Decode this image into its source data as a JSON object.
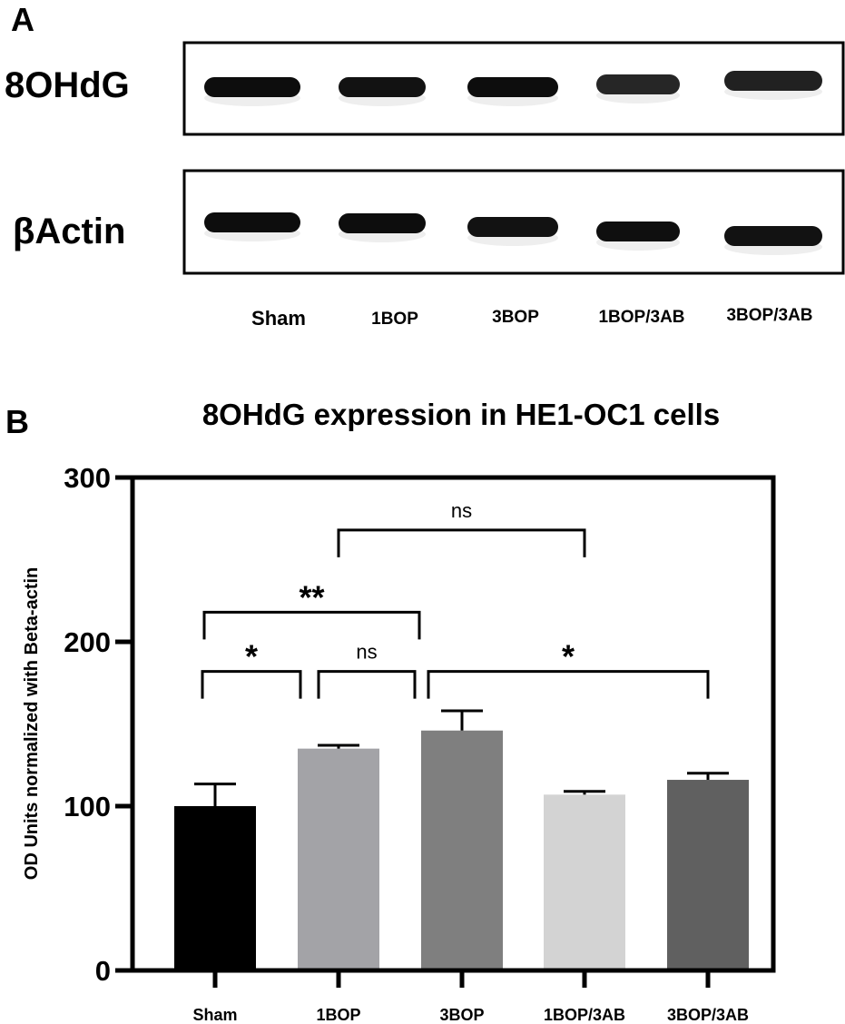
{
  "panel_a": {
    "letter": "A",
    "blots": [
      {
        "label": "8OHdG",
        "bands": [
          {
            "intensity": 0.95
          },
          {
            "intensity": 0.93
          },
          {
            "intensity": 0.95
          },
          {
            "intensity": 0.85
          },
          {
            "intensity": 0.87
          }
        ]
      },
      {
        "label": "βActin",
        "bands": [
          {
            "intensity": 0.95
          },
          {
            "intensity": 0.95
          },
          {
            "intensity": 0.93
          },
          {
            "intensity": 0.94
          },
          {
            "intensity": 0.93
          }
        ]
      }
    ],
    "lane_labels": [
      "Sham",
      "1BOP",
      "3BOP",
      "1BOP/3AB",
      "3BOP/3AB"
    ]
  },
  "panel_b": {
    "letter": "B"
  },
  "chart_data": {
    "type": "bar",
    "title": "8OHdG expression in HE1-OC1 cells",
    "xlabel": "",
    "ylabel": "OD Units normalized with Beta-actin",
    "categories": [
      "Sham",
      "1BOP",
      "3BOP",
      "1BOP/3AB",
      "3BOP/3AB"
    ],
    "values": [
      100,
      135,
      146,
      107,
      116
    ],
    "errors": [
      13.5,
      2,
      12,
      2,
      4
    ],
    "colors": [
      "#000000",
      "#a3a3a7",
      "#7f7f7f",
      "#d3d3d3",
      "#606060"
    ],
    "ylim": [
      0,
      300
    ],
    "yticks": [
      0,
      100,
      200,
      300
    ],
    "grid": false,
    "significance": [
      {
        "from": 0,
        "to": 1,
        "label": "*",
        "y": 182
      },
      {
        "from": 1,
        "to": 2,
        "label": "ns",
        "y": 182
      },
      {
        "from": 2,
        "to": 4,
        "label": "*",
        "y": 182
      },
      {
        "from": 0,
        "to": 2,
        "label": "**",
        "y": 218
      },
      {
        "from": 1,
        "to": 3,
        "label": "ns",
        "y": 268
      }
    ]
  }
}
